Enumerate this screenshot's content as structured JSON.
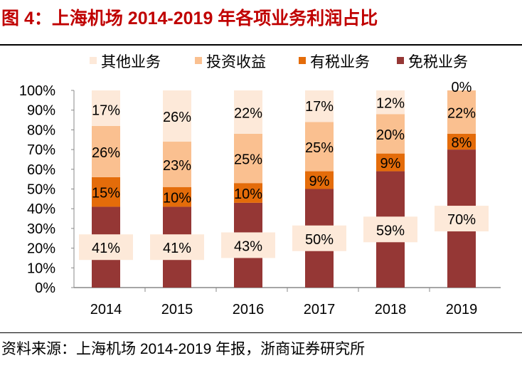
{
  "title": "图 4：上海机场 2014-2019 年各项业务利润占比",
  "source": "资料来源：上海机场 2014-2019 年报，浙商证券研究所",
  "chart_data": {
    "type": "bar",
    "stacked": true,
    "categories": [
      "2014",
      "2015",
      "2016",
      "2017",
      "2018",
      "2019"
    ],
    "series": [
      {
        "name": "免税业务",
        "color": "#953735",
        "values": [
          41,
          41,
          43,
          50,
          59,
          70
        ]
      },
      {
        "name": "有税业务",
        "color": "#E46C0A",
        "values": [
          15,
          10,
          10,
          9,
          9,
          8
        ]
      },
      {
        "name": "投资收益",
        "color": "#FAC090",
        "values": [
          26,
          23,
          25,
          25,
          20,
          22
        ]
      },
      {
        "name": "其他业务",
        "color": "#FDE9D9",
        "values": [
          17,
          26,
          22,
          17,
          12,
          0
        ]
      }
    ],
    "legend_order": [
      "其他业务",
      "投资收益",
      "有税业务",
      "免税业务"
    ],
    "legend_position": "top",
    "yticks": [
      "0%",
      "10%",
      "20%",
      "30%",
      "40%",
      "50%",
      "60%",
      "70%",
      "80%",
      "90%",
      "100%"
    ],
    "ylim": [
      0,
      100
    ],
    "grid": false
  }
}
